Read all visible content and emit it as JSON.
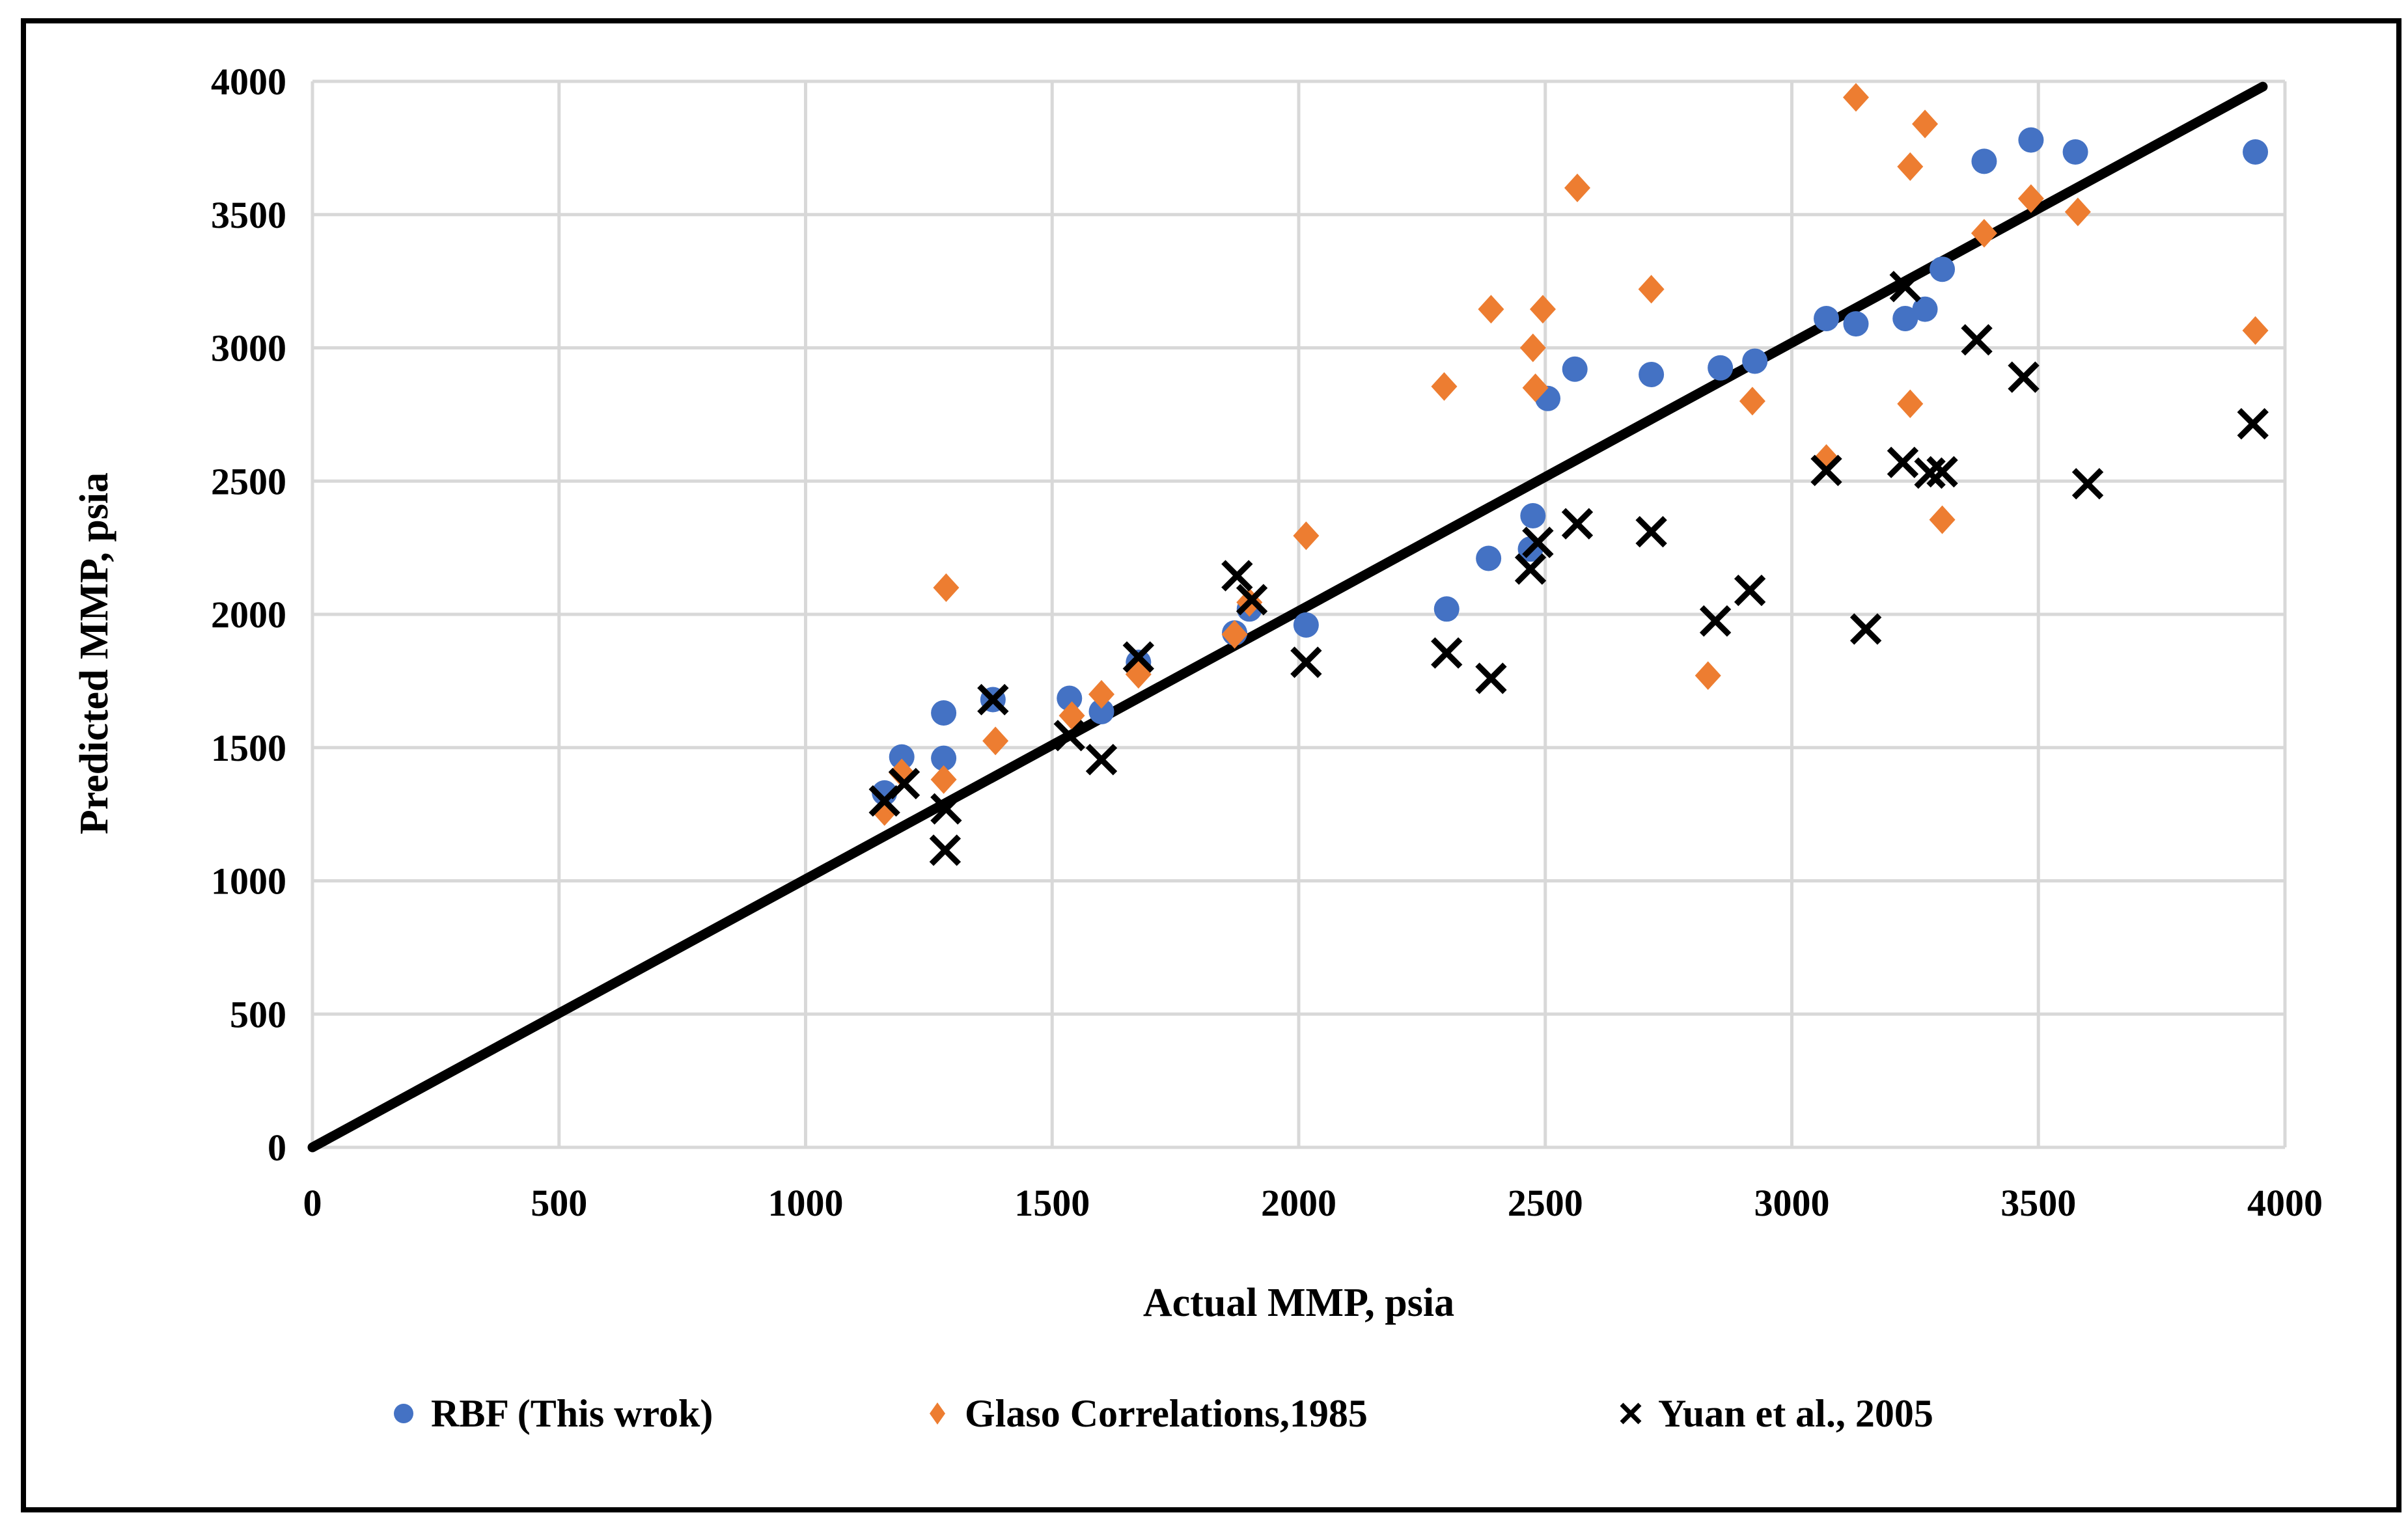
{
  "figure": {
    "border_color": "#000000",
    "background": "#ffffff"
  },
  "chart_data": {
    "type": "scatter",
    "title": "",
    "xlabel": "Actual MMP, psia",
    "ylabel": "Predicted  MMP, psia",
    "xlim": [
      0,
      4000
    ],
    "ylim": [
      0,
      4000
    ],
    "x_ticks": [
      0,
      500,
      1000,
      1500,
      2000,
      2500,
      3000,
      3500,
      4000
    ],
    "y_ticks": [
      0,
      500,
      1000,
      1500,
      2000,
      2500,
      3000,
      3500,
      4000
    ],
    "grid": true,
    "gridline_color": "#d8d8d8",
    "legend_position": "bottom",
    "identity_line": {
      "x1": 0,
      "y1": 0,
      "x2": 3955,
      "y2": 3980,
      "color": "#000000"
    },
    "series": [
      {
        "name": "RBF (This wrok)",
        "marker": "circle",
        "color": "#4472c4",
        "points": [
          [
            1160,
            1330
          ],
          [
            1195,
            1465
          ],
          [
            1280,
            1460
          ],
          [
            1280,
            1630
          ],
          [
            1380,
            1680
          ],
          [
            1535,
            1685
          ],
          [
            1600,
            1635
          ],
          [
            1675,
            1820
          ],
          [
            1870,
            1930
          ],
          [
            1900,
            2020
          ],
          [
            2015,
            1960
          ],
          [
            2300,
            2020
          ],
          [
            2385,
            2210
          ],
          [
            2470,
            2245
          ],
          [
            2475,
            2370
          ],
          [
            2505,
            2810
          ],
          [
            2560,
            2920
          ],
          [
            2715,
            2900
          ],
          [
            2855,
            2925
          ],
          [
            2925,
            2950
          ],
          [
            3070,
            3110
          ],
          [
            3130,
            3090
          ],
          [
            3230,
            3110
          ],
          [
            3270,
            3145
          ],
          [
            3305,
            3295
          ],
          [
            3390,
            3700
          ],
          [
            3485,
            3780
          ],
          [
            3575,
            3735
          ],
          [
            3940,
            3735
          ]
        ]
      },
      {
        "name": "Glaso Correlations,1985",
        "marker": "diamond",
        "color": "#ed7d31",
        "points": [
          [
            1160,
            1260
          ],
          [
            1195,
            1405
          ],
          [
            1280,
            1380
          ],
          [
            1285,
            2100
          ],
          [
            1385,
            1525
          ],
          [
            1540,
            1620
          ],
          [
            1600,
            1700
          ],
          [
            1675,
            1775
          ],
          [
            1870,
            1925
          ],
          [
            1900,
            2045
          ],
          [
            2015,
            2295
          ],
          [
            2295,
            2855
          ],
          [
            2390,
            3145
          ],
          [
            2475,
            3000
          ],
          [
            2480,
            2850
          ],
          [
            2495,
            3145
          ],
          [
            2565,
            3600
          ],
          [
            2715,
            3220
          ],
          [
            2830,
            1770
          ],
          [
            2920,
            2800
          ],
          [
            3070,
            2585
          ],
          [
            3130,
            3940
          ],
          [
            3240,
            2790
          ],
          [
            3240,
            3680
          ],
          [
            3270,
            3840
          ],
          [
            3305,
            2355
          ],
          [
            3390,
            3430
          ],
          [
            3485,
            3560
          ],
          [
            3580,
            3510
          ],
          [
            3940,
            3065
          ]
        ]
      },
      {
        "name": "Yuan et al., 2005",
        "marker": "x",
        "color": "#000000",
        "points": [
          [
            1160,
            1300
          ],
          [
            1200,
            1365
          ],
          [
            1285,
            1270
          ],
          [
            1283,
            1115
          ],
          [
            1380,
            1680
          ],
          [
            1535,
            1545
          ],
          [
            1600,
            1455
          ],
          [
            1675,
            1840
          ],
          [
            1875,
            2145
          ],
          [
            1905,
            2055
          ],
          [
            2015,
            1820
          ],
          [
            2300,
            1855
          ],
          [
            2390,
            1760
          ],
          [
            2470,
            2170
          ],
          [
            2485,
            2270
          ],
          [
            2565,
            2340
          ],
          [
            2715,
            2310
          ],
          [
            2845,
            1975
          ],
          [
            2915,
            2090
          ],
          [
            3070,
            2540
          ],
          [
            3150,
            1945
          ],
          [
            3225,
            2570
          ],
          [
            3280,
            2530
          ],
          [
            3305,
            2535
          ],
          [
            3230,
            3230
          ],
          [
            3375,
            3030
          ],
          [
            3470,
            2890
          ],
          [
            3600,
            2490
          ],
          [
            3935,
            2715
          ]
        ]
      }
    ]
  },
  "legend": {
    "items": [
      {
        "label": "RBF (This wrok)",
        "marker": "circle",
        "color": "#4472c4"
      },
      {
        "label": "Glaso Correlations,1985",
        "marker": "diamond",
        "color": "#ed7d31"
      },
      {
        "label": "Yuan et al., 2005",
        "marker": "x",
        "color": "#000000"
      }
    ]
  }
}
